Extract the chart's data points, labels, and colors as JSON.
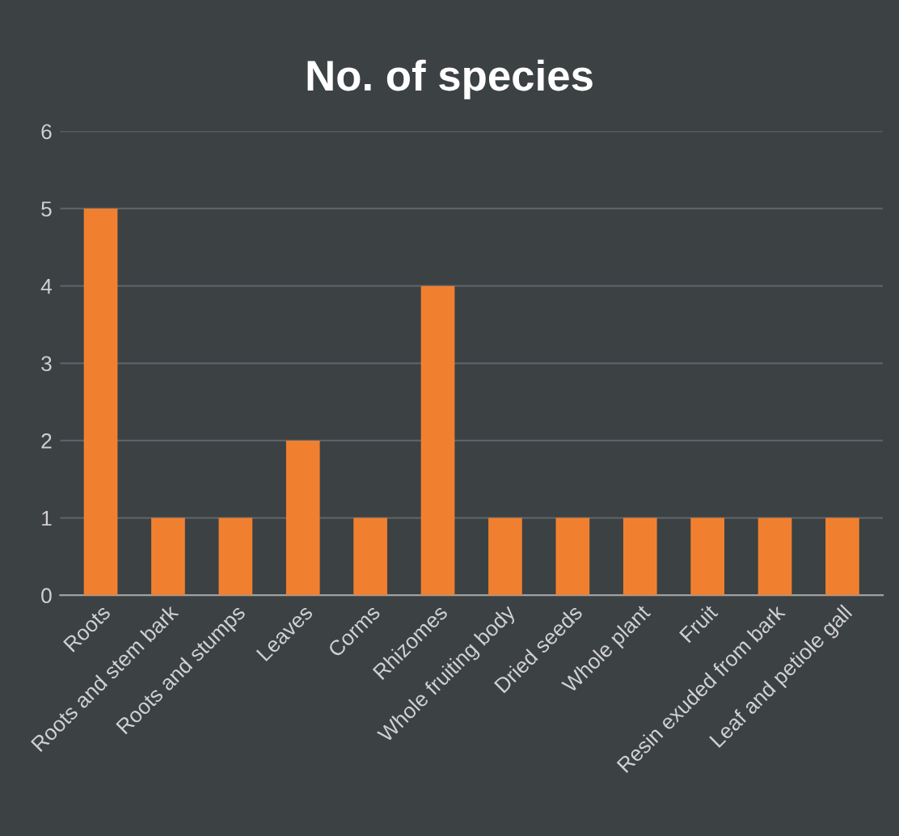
{
  "chart_data": {
    "type": "bar",
    "title": "No. of species",
    "categories": [
      "Roots",
      "Roots and stem bark",
      "Roots and stumps",
      "Leaves",
      "Corms",
      "Rhizomes",
      "Whole fruiting body",
      "Dried seeds",
      "Whole plant",
      "Fruit",
      "Resin exuded from bark",
      "Leaf and petiole gall"
    ],
    "values": [
      5,
      1,
      1,
      2,
      1,
      4,
      1,
      1,
      1,
      1,
      1,
      1
    ],
    "color": "#f08030",
    "ylim": [
      0,
      6
    ],
    "yticks": [
      0,
      1,
      2,
      3,
      4,
      5,
      6
    ],
    "grid": "y"
  }
}
